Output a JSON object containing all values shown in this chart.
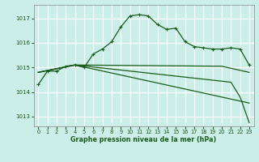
{
  "bg_color": "#cceee8",
  "grid_color": "#ffffff",
  "line_color": "#1a5c1a",
  "xlabel": "Graphe pression niveau de la mer (hPa)",
  "ylim": [
    1012.6,
    1017.55
  ],
  "xlim": [
    -0.5,
    23.5
  ],
  "yticks": [
    1013,
    1014,
    1015,
    1016,
    1017
  ],
  "xticks": [
    0,
    1,
    2,
    3,
    4,
    5,
    6,
    7,
    8,
    9,
    10,
    11,
    12,
    13,
    14,
    15,
    16,
    17,
    18,
    19,
    20,
    21,
    22,
    23
  ],
  "series": [
    {
      "x": [
        0,
        1,
        2,
        3,
        4,
        5,
        6,
        7,
        8,
        9,
        10,
        11,
        12,
        13,
        14,
        15,
        16,
        17,
        18,
        19,
        20,
        21,
        22,
        23
      ],
      "y": [
        1014.3,
        1014.85,
        1014.85,
        1015.05,
        1015.1,
        1015.0,
        1015.55,
        1015.75,
        1016.05,
        1016.65,
        1017.1,
        1017.15,
        1017.1,
        1016.75,
        1016.55,
        1016.6,
        1016.05,
        1015.85,
        1015.8,
        1015.75,
        1015.75,
        1015.8,
        1015.75,
        1015.1
      ],
      "marker": true,
      "linewidth": 0.9
    },
    {
      "x": [
        0,
        4,
        20,
        23
      ],
      "y": [
        1014.8,
        1015.1,
        1015.05,
        1014.8
      ],
      "marker": false,
      "linewidth": 0.9
    },
    {
      "x": [
        0,
        4,
        23
      ],
      "y": [
        1014.8,
        1015.1,
        1013.55
      ],
      "marker": false,
      "linewidth": 0.9
    },
    {
      "x": [
        0,
        4,
        21,
        22,
        23
      ],
      "y": [
        1014.8,
        1015.1,
        1014.4,
        1013.8,
        1012.75
      ],
      "marker": false,
      "linewidth": 0.9
    }
  ]
}
